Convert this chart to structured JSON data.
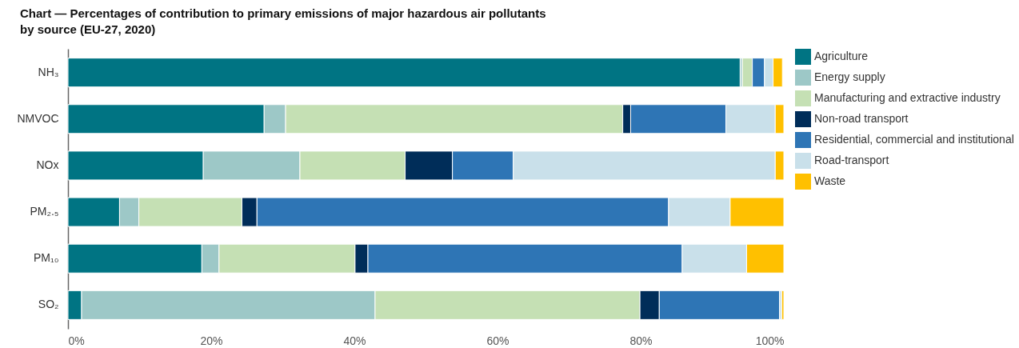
{
  "chart_data": {
    "type": "bar",
    "orientation": "horizontal",
    "stacked": true,
    "title": "Chart — Percentages of contribution to primary emissions of major hazardous air pollutants by source (EU-27, 2020)",
    "categories": [
      "NH₃",
      "NMVOC",
      "NOx",
      "PM₂.₅",
      "PM₁₀",
      "SO₂"
    ],
    "series": [
      {
        "name": "Agriculture",
        "color": "#007483",
        "values": [
          93.9,
          27.4,
          18.9,
          7.2,
          18.7,
          1.9
        ]
      },
      {
        "name": "Energy supply",
        "color": "#9dc8c7",
        "values": [
          0.3,
          3.0,
          13.5,
          2.7,
          2.4,
          41.0
        ]
      },
      {
        "name": "Manufacturing and extractive industry",
        "color": "#c5e0b4",
        "values": [
          1.4,
          47.1,
          14.7,
          14.4,
          19.0,
          37.0
        ]
      },
      {
        "name": "Non-road transport",
        "color": "#002d59",
        "values": [
          0,
          1.1,
          6.6,
          2.1,
          1.8,
          2.7
        ]
      },
      {
        "name": "Residential, commercial and institutional",
        "color": "#2e75b5",
        "values": [
          1.7,
          13.3,
          8.5,
          57.5,
          43.9,
          16.8
        ]
      },
      {
        "name": "Road-transport",
        "color": "#c9e0ea",
        "values": [
          1.2,
          6.9,
          36.6,
          8.6,
          9.0,
          0.3
        ]
      },
      {
        "name": "Waste",
        "color": "#ffc000",
        "values": [
          1.3,
          1.2,
          1.2,
          7.5,
          5.2,
          0.3
        ]
      }
    ],
    "xlim": [
      0,
      100
    ],
    "xticks": [
      {
        "value": 0,
        "label": "0%"
      },
      {
        "value": 20,
        "label": "20%"
      },
      {
        "value": 40,
        "label": "40%"
      },
      {
        "value": 60,
        "label": "60%"
      },
      {
        "value": 80,
        "label": "80%"
      },
      {
        "value": 100,
        "label": "100%"
      }
    ],
    "grid": false,
    "legend": "top right"
  }
}
